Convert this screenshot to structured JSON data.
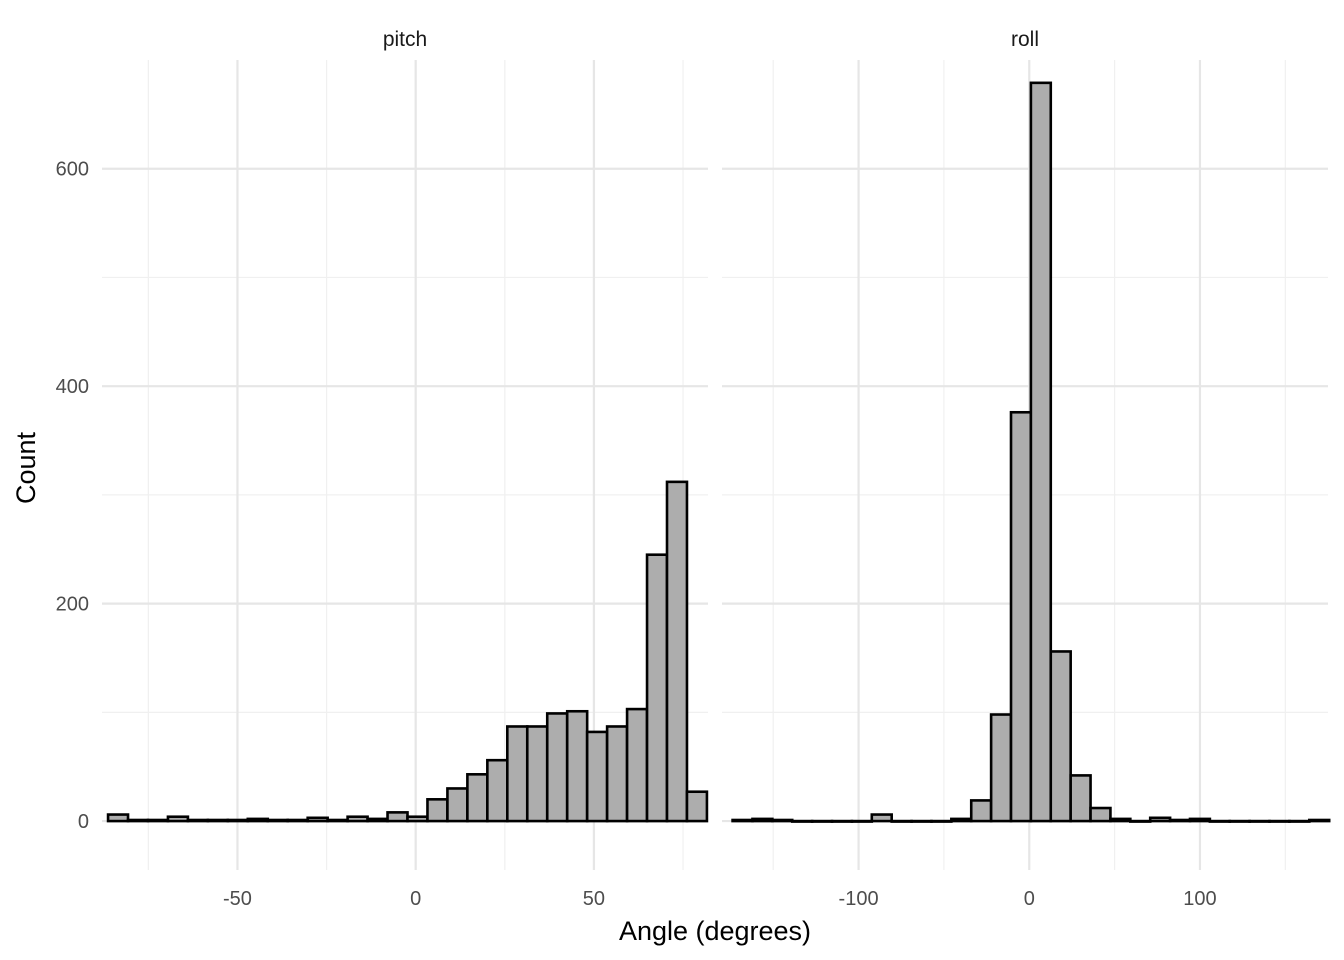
{
  "chart_data": {
    "type": "bar",
    "xlabel": "Angle (degrees)",
    "ylabel": "Count",
    "ylim": [
      -45,
      700
    ],
    "y_ticks": [
      0,
      200,
      400,
      600
    ],
    "grid": true,
    "colors": {
      "bar_fill": "#adadad",
      "bar_stroke": "#000000",
      "grid_major": "#e6e6e6",
      "grid_minor": "#f0f0f0"
    },
    "panels": [
      {
        "strip": "pitch",
        "xlim": [
          -88,
          82
        ],
        "x_ticks": [
          -50,
          0,
          50
        ],
        "x_tick_labels": [
          "-50",
          "0",
          "50"
        ],
        "minor_x": [
          -75,
          -25,
          25,
          75
        ],
        "bin_width": 5.6,
        "bin_start": -86.3,
        "values": [
          6,
          1,
          1,
          4,
          1,
          1,
          1,
          2,
          1,
          1,
          3,
          1,
          4,
          2,
          8,
          4,
          20,
          30,
          43,
          56,
          87,
          87,
          99,
          101,
          82,
          87,
          103,
          245,
          312,
          27
        ]
      },
      {
        "strip": "roll",
        "xlim": [
          -180,
          175
        ],
        "x_ticks": [
          -100,
          0,
          100
        ],
        "x_tick_labels": [
          "-100",
          "0",
          "100"
        ],
        "minor_x": [
          -150,
          -50,
          50,
          150
        ],
        "bin_width": 11.65,
        "bin_start": -173.8,
        "values": [
          1,
          2,
          1,
          0,
          0,
          0,
          0,
          6,
          0,
          0,
          0,
          2,
          19,
          98,
          376,
          679,
          156,
          42,
          12,
          2,
          0,
          3,
          1,
          2,
          0,
          0,
          0,
          0,
          0,
          1
        ]
      }
    ]
  }
}
